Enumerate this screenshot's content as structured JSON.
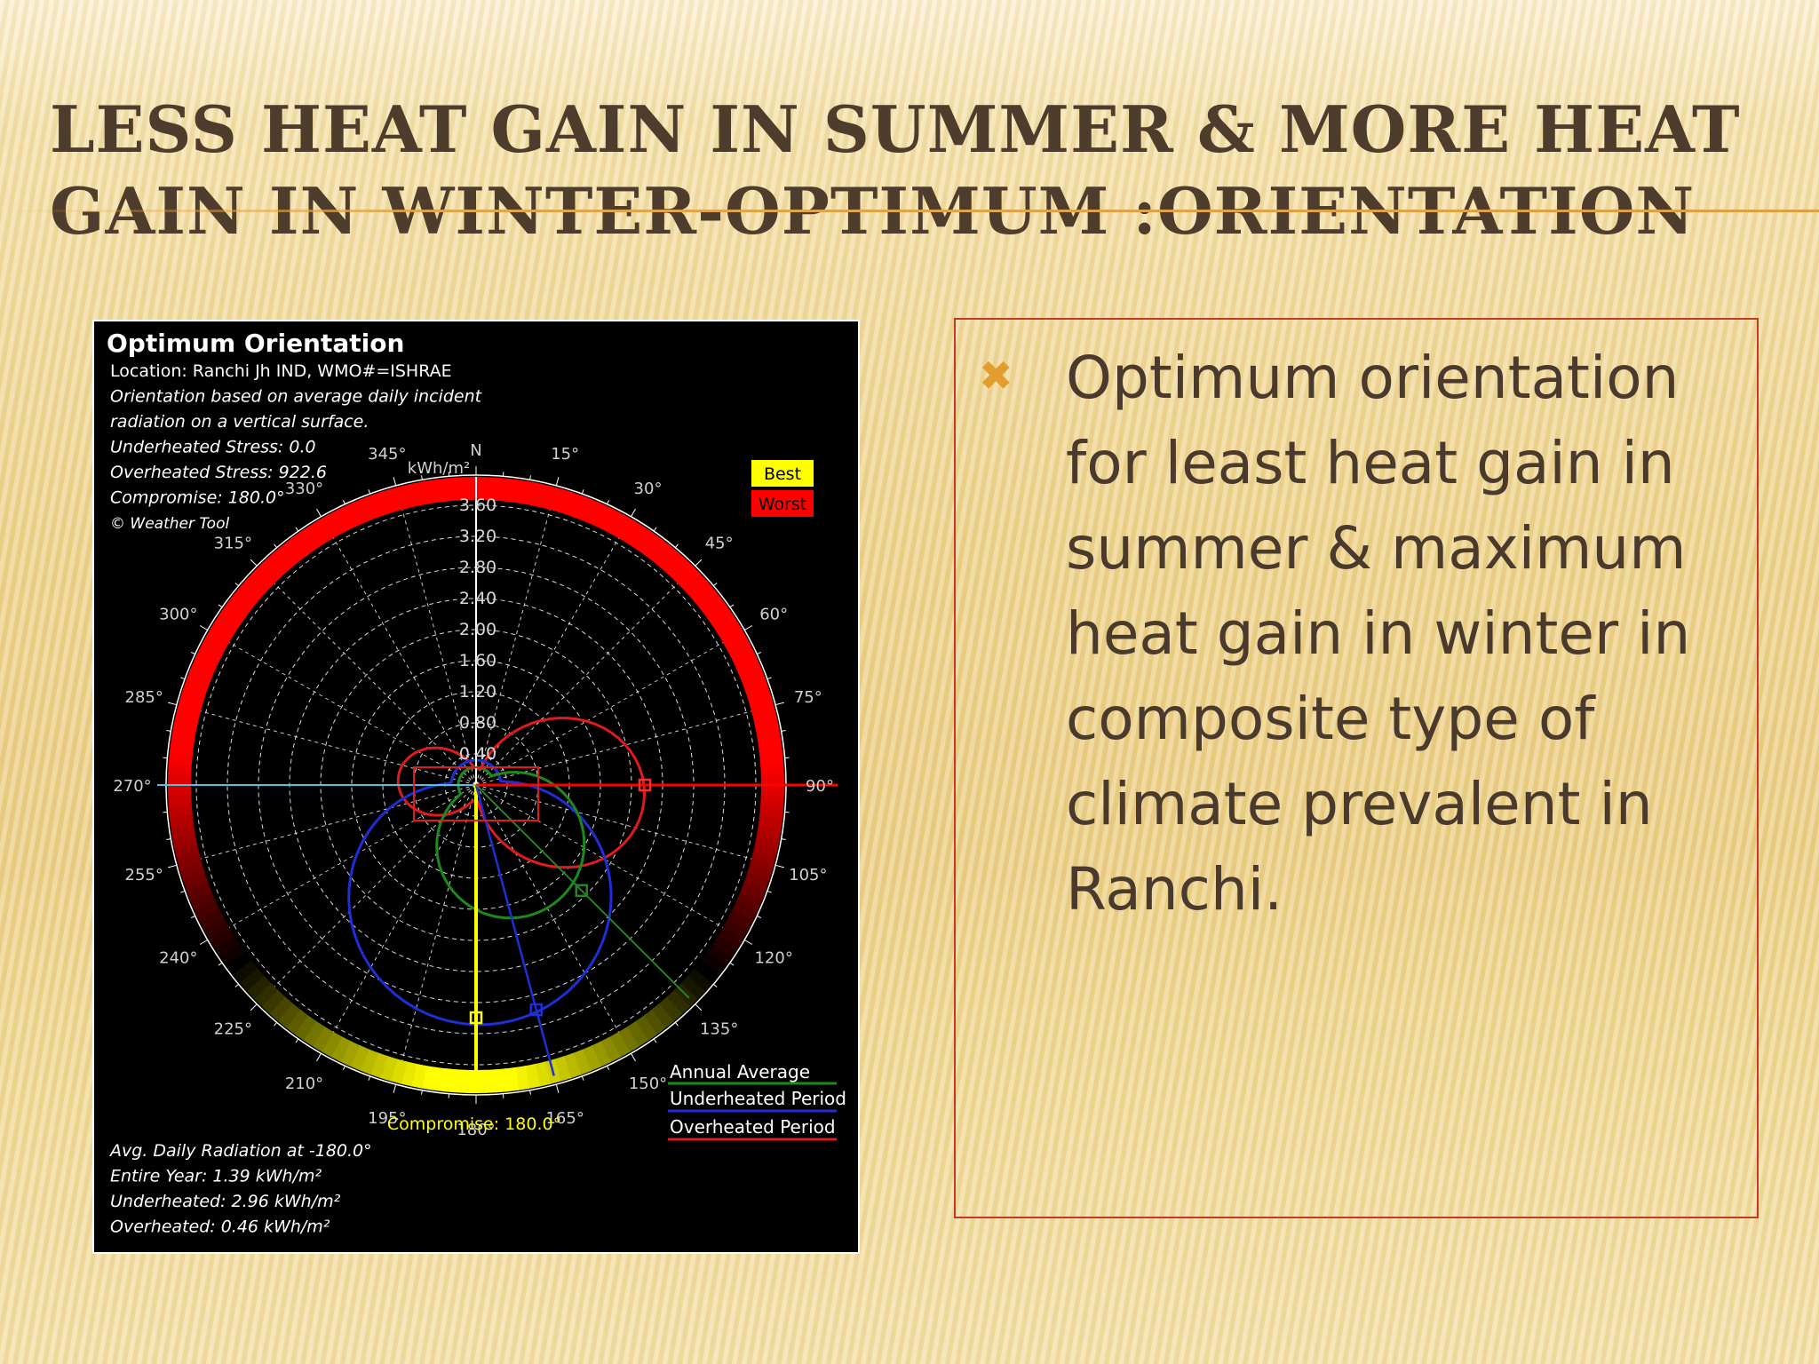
{
  "slide": {
    "title_line1": "LESS HEAT GAIN IN SUMMER & MORE HEAT",
    "title_line2": "GAIN IN WINTER-OPTIMUM :ORIENTATION",
    "bullet_icon": "x-mark-icon",
    "bullet_text": "Optimum orientation for least heat gain in summer & maximum heat gain in winter in composite type of climate prevalent in Ranchi."
  },
  "chart_data": {
    "type": "polar",
    "title": "Optimum Orientation",
    "info_lines": [
      "Location: Ranchi Jh IND, WMO#=ISHRAE",
      "Orientation based on average daily incident",
      "radiation on a vertical surface.",
      "Underheated Stress: 0.0",
      "Overheated Stress: 922.6",
      "Compromise: 180.0°",
      "© Weather Tool"
    ],
    "unit_label": "kWh/m²",
    "north_label": "N",
    "radial_ticks": [
      "0.40",
      "0.80",
      "1.20",
      "1.60",
      "2.00",
      "2.40",
      "2.80",
      "3.20",
      "3.60"
    ],
    "angle_labels": [
      "15°",
      "30°",
      "45°",
      "60°",
      "75°",
      "90°",
      "105°",
      "120°",
      "135°",
      "150°",
      "165°",
      "180°",
      "195°",
      "210°",
      "225°",
      "240°",
      "255°",
      "270°",
      "285°",
      "300°",
      "315°",
      "330°",
      "345°"
    ],
    "scale_legend": {
      "best": "Best",
      "worst": "Worst"
    },
    "series": [
      {
        "name": "Annual Average",
        "color": "#1e8a1e"
      },
      {
        "name": "Underheated Period",
        "color": "#1f2fd6"
      },
      {
        "name": "Overheated Period",
        "color": "#e01b1b"
      }
    ],
    "compromise_label": "Compromise: 180.0°",
    "compromise_angle": 180,
    "footer_lines": [
      "Avg. Daily Radiation at -180.0°",
      "Entire Year: 1.39 kWh/m²",
      "Underheated: 2.96 kWh/m²",
      "Overheated: 0.46 kWh/m²"
    ],
    "colors": {
      "background": "#000000",
      "best": "#ffff00",
      "worst": "#ff0000",
      "axis_horizontal": "#4ec3e0"
    }
  }
}
